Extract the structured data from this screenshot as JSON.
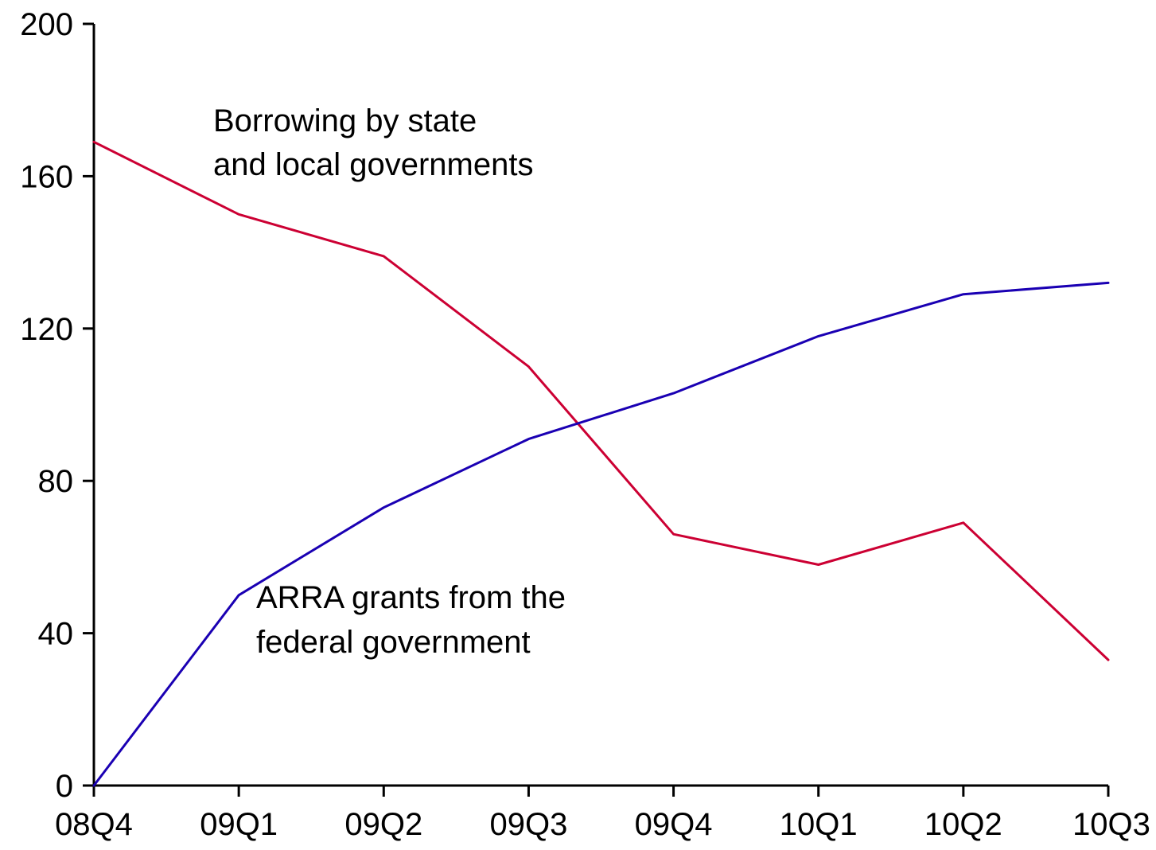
{
  "chart_data": {
    "type": "line",
    "title": "",
    "xlabel": "",
    "ylabel": "",
    "categories": [
      "08Q4",
      "09Q1",
      "09Q2",
      "09Q3",
      "09Q4",
      "10Q1",
      "10Q2",
      "10Q3"
    ],
    "ylim": [
      0,
      200
    ],
    "yticks": [
      "0",
      "40",
      "80",
      "120",
      "160",
      "200"
    ],
    "grid": false,
    "legend": "none",
    "series": [
      {
        "color": "#cc0033",
        "values": [
          169,
          150,
          139,
          110,
          66,
          58,
          69,
          33
        ]
      },
      {
        "color": "#1a00b3",
        "values": [
          0,
          50,
          73,
          91,
          103,
          118,
          129,
          132
        ]
      }
    ],
    "annotations": [
      {
        "lines": [
          "Borrowing by state",
          "and local governments"
        ]
      },
      {
        "lines": [
          "ARRA grants from the",
          "federal government"
        ]
      }
    ]
  }
}
